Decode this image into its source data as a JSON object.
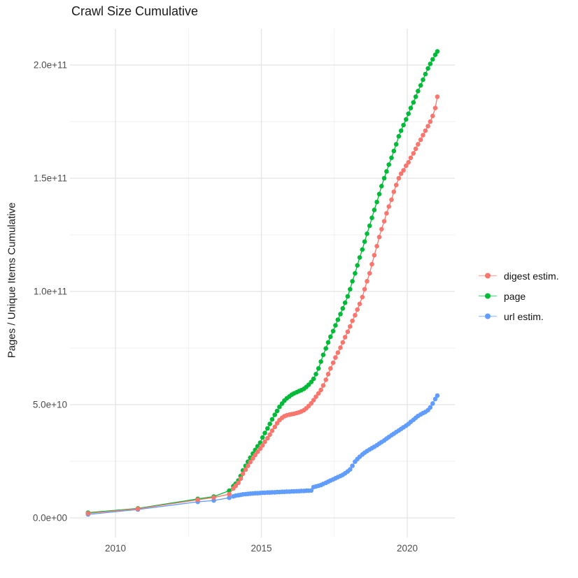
{
  "chart_data": {
    "type": "line",
    "title": "Crawl Size Cumulative",
    "xlabel": "",
    "ylabel": "Pages / Unique Items Cumulative",
    "legend_position": "right",
    "style": {
      "background": "#ffffff",
      "grid_major": "#e3e3e3",
      "grid_minor": "#efefef",
      "tick_label_color": "#4d4d4d",
      "text_color": "#1a1a1a"
    },
    "x_axis": {
      "ticks": [
        {
          "value": 2010,
          "label": "2010"
        },
        {
          "value": 2015,
          "label": "2015"
        },
        {
          "value": 2020,
          "label": "2020"
        }
      ],
      "minor_ticks": [
        2012.5,
        2017.5
      ],
      "range": [
        2008.46,
        2021.63
      ]
    },
    "y_axis": {
      "value_scale": 1000000000.0,
      "ticks": [
        {
          "value": 0,
          "label": "0.0e+00"
        },
        {
          "value": 50,
          "label": "5.0e+10"
        },
        {
          "value": 100,
          "label": "1.0e+11"
        },
        {
          "value": 150,
          "label": "1.5e+11"
        },
        {
          "value": 200,
          "label": "2.0e+11"
        }
      ],
      "minor_ticks": [
        25,
        75,
        125,
        175
      ],
      "range": [
        -9,
        216
      ]
    },
    "x": [
      2009.06,
      2010.77,
      2012.82,
      2013.37,
      2013.9,
      2014.04,
      2014.12,
      2014.21,
      2014.29,
      2014.37,
      2014.46,
      2014.54,
      2014.62,
      2014.71,
      2014.79,
      2014.87,
      2014.96,
      2015.04,
      2015.12,
      2015.21,
      2015.29,
      2015.37,
      2015.46,
      2015.54,
      2015.62,
      2015.71,
      2015.79,
      2015.87,
      2015.96,
      2016.04,
      2016.12,
      2016.21,
      2016.29,
      2016.37,
      2016.46,
      2016.54,
      2016.62,
      2016.71,
      2016.79,
      2016.87,
      2016.96,
      2017.04,
      2017.12,
      2017.21,
      2017.29,
      2017.37,
      2017.46,
      2017.54,
      2017.62,
      2017.71,
      2017.79,
      2017.87,
      2017.96,
      2018.04,
      2018.12,
      2018.21,
      2018.29,
      2018.37,
      2018.46,
      2018.54,
      2018.62,
      2018.71,
      2018.79,
      2018.87,
      2018.96,
      2019.04,
      2019.12,
      2019.21,
      2019.29,
      2019.37,
      2019.46,
      2019.54,
      2019.62,
      2019.71,
      2019.79,
      2019.87,
      2019.96,
      2020.04,
      2020.12,
      2020.21,
      2020.29,
      2020.37,
      2020.46,
      2020.54,
      2020.62,
      2020.71,
      2020.79,
      2020.87,
      2020.96,
      2021.03
    ],
    "series": [
      {
        "name": "digest estim.",
        "color": "#F8766D",
        "values": [
          2,
          4,
          8,
          9,
          10.5,
          13,
          14.2,
          15.5,
          17.3,
          19.5,
          21.3,
          23,
          24.7,
          26.3,
          27.8,
          29.2,
          30.6,
          32,
          33.6,
          35.2,
          36.8,
          38.5,
          40.2,
          41.8,
          43.2,
          44.2,
          44.9,
          45.3,
          45.6,
          45.8,
          46,
          46.3,
          46.6,
          47,
          47.6,
          48.4,
          49.4,
          50.6,
          52,
          53.5,
          55,
          56.5,
          58.5,
          61,
          63.5,
          66,
          68.5,
          70.8,
          73,
          75.2,
          77.5,
          79.8,
          82.2,
          84.5,
          87,
          89.5,
          92,
          94.5,
          97.5,
          101,
          104.5,
          108,
          112,
          116,
          120,
          124,
          127.5,
          131,
          134.5,
          137.5,
          140.5,
          144,
          147,
          150,
          152,
          153.5,
          155.5,
          157,
          159,
          161,
          163,
          165,
          167,
          169,
          171,
          173,
          175,
          177.5,
          181,
          186
        ]
      },
      {
        "name": "page",
        "color": "#00BA38",
        "values": [
          2.3,
          4.2,
          8.4,
          9.4,
          12,
          14,
          15.1,
          16.5,
          18.5,
          21,
          23,
          24.8,
          26.6,
          28.4,
          30,
          31.6,
          33.2,
          35.5,
          37.5,
          39.5,
          41.5,
          43.5,
          45.5,
          47.2,
          49,
          50.5,
          51.8,
          52.8,
          53.6,
          54.4,
          55,
          55.5,
          56,
          56.4,
          57,
          57.8,
          58.8,
          60,
          61.4,
          63.5,
          66,
          69,
          72,
          74.8,
          77.5,
          80,
          82.5,
          85,
          87.5,
          90,
          92.5,
          95,
          97.8,
          101,
          104.5,
          108,
          111.5,
          115,
          118.5,
          122,
          125.5,
          129,
          132.5,
          136,
          139.5,
          143,
          146.5,
          150,
          153,
          156,
          159,
          162,
          165,
          168.5,
          171,
          173.5,
          176,
          178.5,
          181,
          183.5,
          186,
          188.5,
          191,
          193.5,
          196,
          198.5,
          200.5,
          202.5,
          204.5,
          206
        ]
      },
      {
        "name": "url estim.",
        "color": "#619CFF",
        "values": [
          1.5,
          3.7,
          7.1,
          7.7,
          8.9,
          9.5,
          9.8,
          10,
          10.2,
          10.4,
          10.5,
          10.6,
          10.7,
          10.8,
          10.9,
          10.9,
          11,
          11.1,
          11.1,
          11.2,
          11.2,
          11.3,
          11.3,
          11.4,
          11.4,
          11.5,
          11.5,
          11.6,
          11.6,
          11.7,
          11.7,
          11.8,
          11.8,
          11.9,
          11.9,
          12,
          12,
          12.1,
          13.6,
          13.9,
          14.2,
          14.5,
          15,
          15.5,
          16,
          16.5,
          17,
          17.5,
          18,
          18.5,
          19,
          19.7,
          20.5,
          21.4,
          23,
          24.8,
          26,
          27,
          28,
          28.8,
          29.5,
          30.2,
          30.8,
          31.4,
          32.1,
          32.8,
          33.5,
          34.2,
          35,
          35.7,
          36.5,
          37.2,
          37.9,
          38.6,
          39.3,
          40,
          40.7,
          41.5,
          42.4,
          43.3,
          44.2,
          45,
          45.7,
          46.3,
          46.8,
          47.6,
          48.8,
          50.5,
          52.5,
          54
        ]
      }
    ]
  }
}
